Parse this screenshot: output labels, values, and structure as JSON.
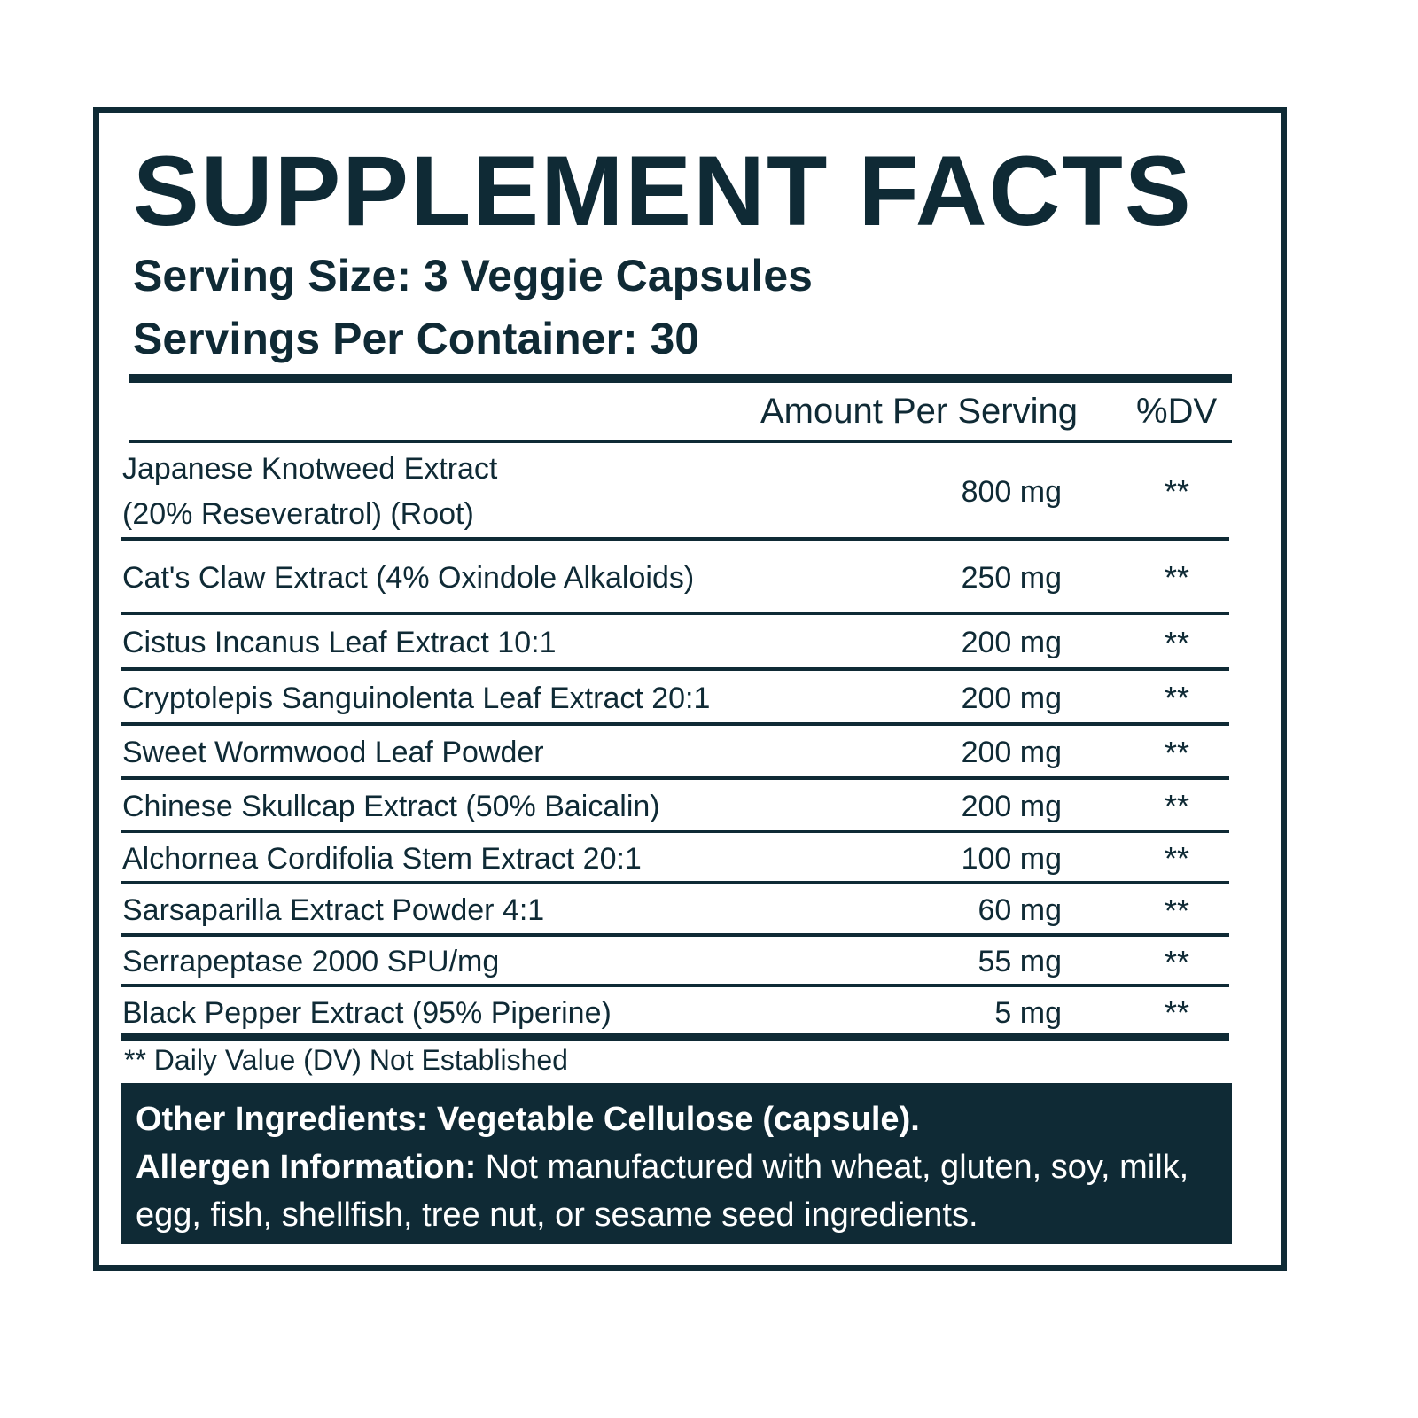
{
  "title": "SUPPLEMENT FACTS",
  "serving_size": "Serving Size: 3 Veggie Capsules",
  "servings_per_container": "Servings Per Container: 30",
  "table": {
    "header": [
      "Amount Per Serving",
      "%DV"
    ],
    "rows": [
      [
        "Japanese Knotweed Extract\n(20% Reseveratrol) (Root)",
        "800 mg",
        "**"
      ],
      [
        "Cat's Claw Extract (4% Oxindole Alkaloids)",
        "250 mg",
        "**"
      ],
      [
        "Cistus Incanus Leaf Extract 10:1",
        "200 mg",
        "**"
      ],
      [
        "Cryptolepis Sanguinolenta Leaf Extract 20:1",
        "200 mg",
        "**"
      ],
      [
        "Sweet Wormwood Leaf Powder",
        "200 mg",
        "**"
      ],
      [
        "Chinese Skullcap Extract (50% Baicalin)",
        "200 mg",
        "**"
      ],
      [
        "Alchornea Cordifolia Stem Extract 20:1",
        "100 mg",
        "**"
      ],
      [
        "Sarsaparilla Extract Powder 4:1",
        "60 mg",
        "**"
      ],
      [
        "Serrapeptase 2000 SPU/mg",
        "55 mg",
        "**"
      ],
      [
        "Black Pepper Extract (95% Piperine)",
        "5 mg",
        "**"
      ]
    ]
  },
  "footnote": "** Daily Value (DV) Not Established",
  "other_ingredients": "Other Ingredients: Vegetable Cellulose (capsule).",
  "allergen": {
    "label": "Allergen Information:",
    "text": "Not manufactured with wheat, gluten, soy, milk, egg, fish, shellfish, tree nut, or sesame seed ingredients."
  }
}
